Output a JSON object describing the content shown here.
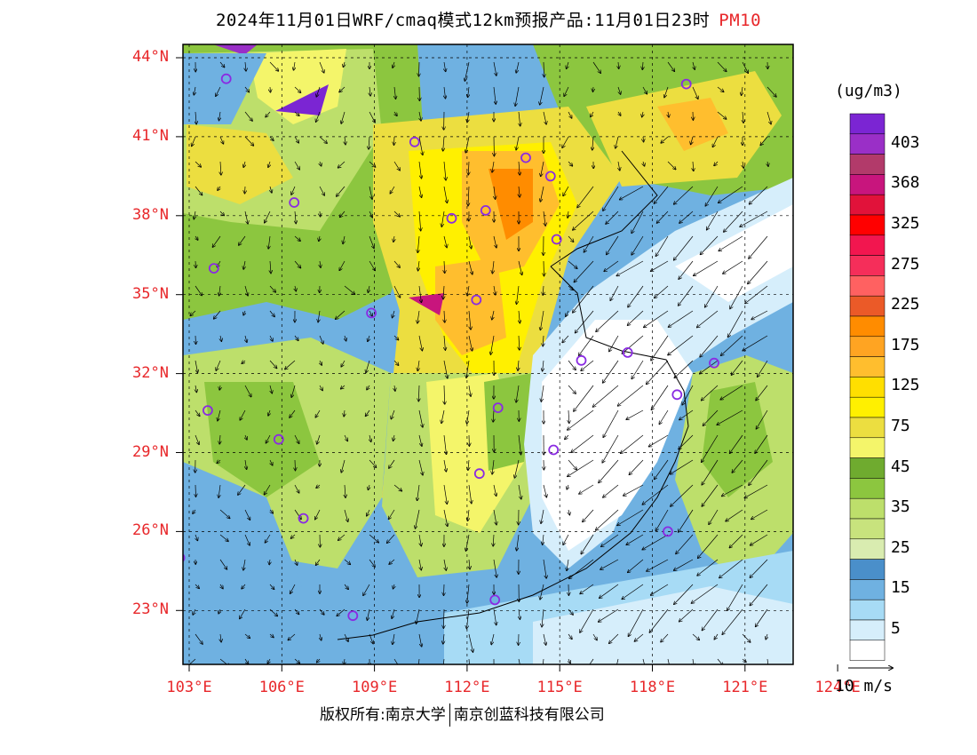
{
  "title": {
    "main": "2024年11月01日WRF/cmaq模式12km预报产品:11月01日23时",
    "pollutant": "PM10"
  },
  "lat_labels": [
    "44°N",
    "41°N",
    "38°N",
    "35°N",
    "32°N",
    "29°N",
    "26°N",
    "23°N"
  ],
  "lon_labels": [
    "103°E",
    "106°E",
    "109°E",
    "112°E",
    "115°E",
    "118°E",
    "121°E",
    "124°E"
  ],
  "colorbar": {
    "unit": "(ug/m3)",
    "levels": [
      {
        "label": "",
        "color": "#7b25d3"
      },
      {
        "label": "403",
        "color": "#9a2fc7"
      },
      {
        "label": "",
        "color": "#b23a6a"
      },
      {
        "label": "368",
        "color": "#c8157d"
      },
      {
        "label": "",
        "color": "#e1123a"
      },
      {
        "label": "325",
        "color": "#ff0000"
      },
      {
        "label": "",
        "color": "#f2164f"
      },
      {
        "label": "275",
        "color": "#f52e5a"
      },
      {
        "label": "",
        "color": "#ff6161"
      },
      {
        "label": "225",
        "color": "#eb5a28"
      },
      {
        "label": "",
        "color": "#ff8c00"
      },
      {
        "label": "175",
        "color": "#ffa422"
      },
      {
        "label": "",
        "color": "#ffbe2e"
      },
      {
        "label": "125",
        "color": "#ffdf00"
      },
      {
        "label": "",
        "color": "#fff000"
      },
      {
        "label": "75",
        "color": "#ecde40"
      },
      {
        "label": "",
        "color": "#f4f56a"
      },
      {
        "label": "45",
        "color": "#6fab2f"
      },
      {
        "label": "",
        "color": "#8cc63f"
      },
      {
        "label": "35",
        "color": "#bddf6b"
      },
      {
        "label": "",
        "color": "#c8e37d"
      },
      {
        "label": "25",
        "color": "#d9ecb0"
      },
      {
        "label": "",
        "color": "#4a8fca"
      },
      {
        "label": "15",
        "color": "#6fb1e1"
      },
      {
        "label": "",
        "color": "#a7dbf5"
      },
      {
        "label": "5",
        "color": "#d6eefb"
      },
      {
        "label": "",
        "color": "#ffffff"
      }
    ]
  },
  "wind_scale_label": "10 m/s",
  "copyright": {
    "left": "版权所有:南京大学",
    "right": "南京创蓝科技有限公司"
  },
  "city_markers": [
    [
      104.2,
      43.2
    ],
    [
      119.1,
      43.0
    ],
    [
      110.3,
      40.8
    ],
    [
      113.9,
      40.2
    ],
    [
      114.7,
      39.5
    ],
    [
      106.4,
      38.5
    ],
    [
      111.5,
      37.9
    ],
    [
      112.6,
      38.2
    ],
    [
      114.9,
      37.1
    ],
    [
      103.8,
      36.0
    ],
    [
      112.3,
      34.8
    ],
    [
      108.9,
      34.3
    ],
    [
      115.7,
      32.5
    ],
    [
      117.2,
      32.8
    ],
    [
      120.0,
      32.4
    ],
    [
      118.8,
      31.2
    ],
    [
      103.6,
      30.6
    ],
    [
      113.0,
      30.7
    ],
    [
      105.9,
      29.5
    ],
    [
      114.8,
      29.1
    ],
    [
      112.4,
      28.2
    ],
    [
      106.7,
      26.5
    ],
    [
      118.5,
      26.0
    ],
    [
      102.7,
      25.0
    ],
    [
      108.3,
      22.8
    ],
    [
      112.9,
      23.4
    ]
  ]
}
